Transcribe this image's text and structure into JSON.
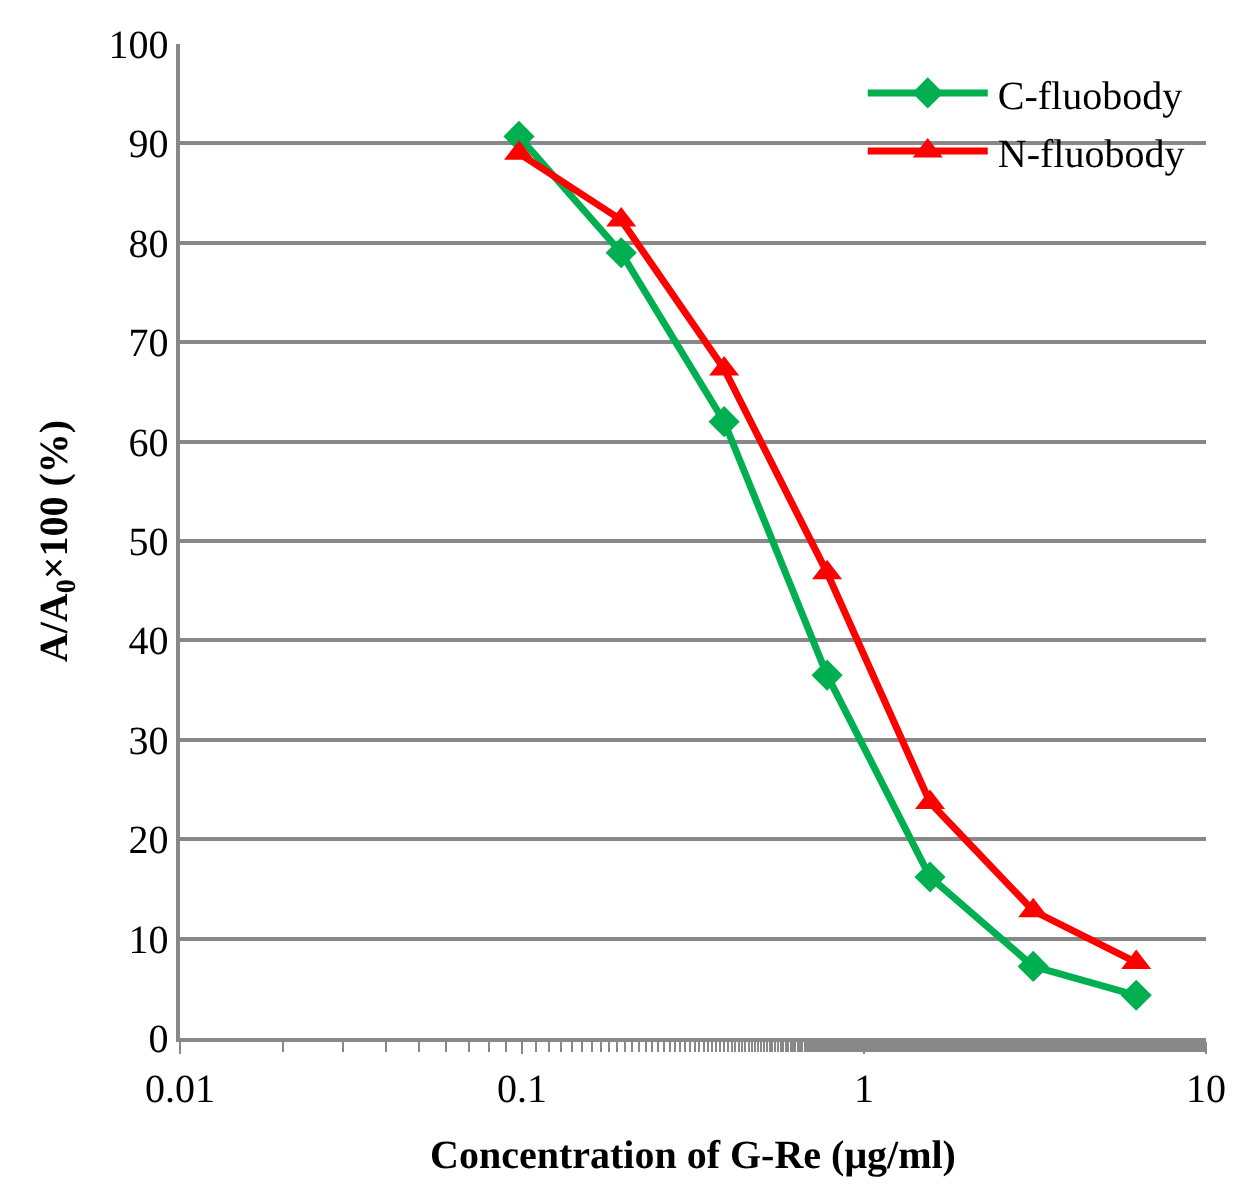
{
  "chart_data": {
    "type": "line",
    "xlabel": "Concentration of G-Re (μg/ml)",
    "ylabel": "A/A$_{0}$×100 (%)",
    "log": "x",
    "xlim": [
      0.01,
      10
    ],
    "xticks": [
      0.01,
      0.1,
      1,
      10
    ],
    "ylim": [
      0,
      100
    ],
    "yticks": [
      0,
      10,
      20,
      30,
      40,
      50,
      60,
      70,
      80,
      90,
      100
    ],
    "grid": "y",
    "legend": "top right",
    "line_style": "solid",
    "x": [
      0.098,
      0.195,
      0.39,
      0.78,
      1.56,
      3.125,
      6.25
    ],
    "series": [
      {
        "name": "C-fluobody",
        "color": "#00b050",
        "marker": "diamond",
        "values": [
          90.7,
          79,
          62,
          36.5,
          16.2,
          7.2,
          4.3
        ]
      },
      {
        "name": "N-fluobody",
        "color": "#ff0000",
        "marker": "triangle",
        "values": [
          89,
          82.3,
          67.3,
          46.8,
          23.7,
          12.8,
          7.6
        ]
      }
    ]
  }
}
